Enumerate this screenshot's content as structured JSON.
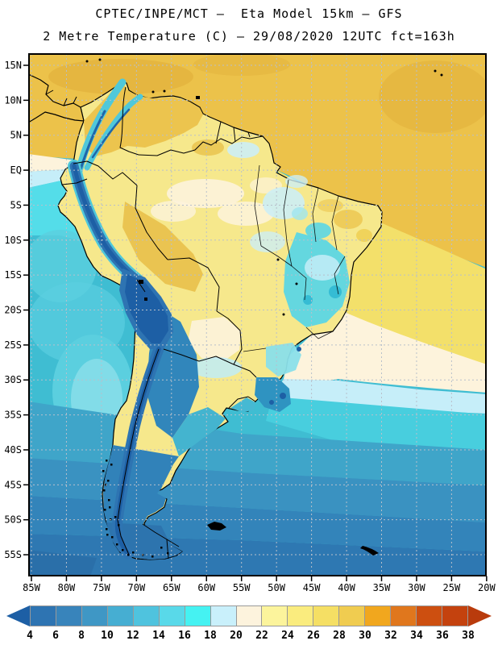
{
  "header": {
    "title": "CPTEC/INPE/MCT –  Eta Model 15km – GFS",
    "subtitle": "2 Metre Temperature (C) – 29/08/2020 12UTC fct=163h"
  },
  "map": {
    "y_axis_labels": [
      "15N",
      "10N",
      "5N",
      "EQ",
      "5S",
      "10S",
      "15S",
      "20S",
      "25S",
      "30S",
      "35S",
      "40S",
      "45S",
      "50S",
      "55S"
    ],
    "x_axis_labels": [
      "85W",
      "80W",
      "75W",
      "70W",
      "65W",
      "60W",
      "55W",
      "50W",
      "45W",
      "40W",
      "35W",
      "30W",
      "25W",
      "20W"
    ],
    "grid_color": "#b8c0cb",
    "frame_color": "#000000",
    "coast_color": "#000000",
    "border_color": "#000000"
  },
  "colorbar": {
    "tick_labels": [
      "4",
      "6",
      "8",
      "10",
      "12",
      "14",
      "16",
      "18",
      "20",
      "22",
      "24",
      "26",
      "28",
      "30",
      "32",
      "34",
      "36",
      "38"
    ],
    "cell_colors": [
      "#2e74b2",
      "#3884bb",
      "#3f97c5",
      "#46aed2",
      "#4fc3de",
      "#59d9e9",
      "#45f2f2",
      "#c9f0fb",
      "#fdf3dd",
      "#fcf49c",
      "#faec7e",
      "#f5df64",
      "#f0cc50",
      "#f1a71e",
      "#e0771d",
      "#cd4f10",
      "#c4420e"
    ],
    "left_arrow_color": "#1d5fa5",
    "right_arrow_color": "#b93b0c",
    "divider_color": "#999999"
  },
  "palette": {
    "ocean_teal": "#3fbdd2",
    "gold": "#ecc24a",
    "gold_deep": "#e2b13c",
    "yellow": "#f3e06a",
    "cream": "#fdf3dc",
    "pale_cyan": "#c6eef9",
    "bright_cyan": "#54dde9",
    "cyan_mid": "#48cede",
    "teal_light": "#5bcfdf",
    "teal_pale": "#82dce8",
    "ocean_b1": "#3fa5c9",
    "ocean_b2": "#3a92c1",
    "ocean_b3": "#3384ba",
    "ocean_b4": "#2e78b2",
    "ocean_b5": "#2a6fa9",
    "land_base": "#f6e88c",
    "land_gold": "#ecc44e",
    "land_gold_deep": "#e9c04a",
    "spot_gold": "#f0d055",
    "land_cyan": "#cdeef5",
    "land_cyan_mid": "#5cd6e4",
    "land_cyan_pale": "#bfecf6",
    "land_cyan_deep": "#35bcd4",
    "tongue_cyan": "#9fe5ef",
    "land_teal": "#44b4cf",
    "land_blue": "#3186bb",
    "land_blue2": "#3182b9",
    "land_blue3": "#2f93c1",
    "land_blue4": "#2d74ae",
    "sp_cyan": "#8adfe9",
    "uruguay_teal": "#46b9d3",
    "andes_fringe": "#4fc8da",
    "andes_mid": "#2e74b2",
    "andes_core": "#1d5fa5",
    "andes_core2": "#1f66aa"
  },
  "chart_data": {
    "type": "heatmap",
    "title": "CPTEC/INPE/MCT –  Eta Model 15km – GFS",
    "subtitle": "2 Metre Temperature (C) – 29/08/2020 12UTC fct=163h",
    "variable": "2 Metre Temperature",
    "units": "C",
    "lat_ticks": [
      "15N",
      "10N",
      "5N",
      "EQ",
      "5S",
      "10S",
      "15S",
      "20S",
      "25S",
      "30S",
      "35S",
      "40S",
      "45S",
      "50S",
      "55S"
    ],
    "lon_ticks": [
      "85W",
      "80W",
      "75W",
      "70W",
      "65W",
      "60W",
      "55W",
      "50W",
      "45W",
      "40W",
      "35W",
      "30W",
      "25W",
      "20W"
    ],
    "colorbar_values_c": [
      4,
      6,
      8,
      10,
      12,
      14,
      16,
      18,
      20,
      22,
      24,
      26,
      28,
      30,
      32,
      34,
      36,
      38
    ],
    "colorbar_colors": [
      "#2e74b2",
      "#3884bb",
      "#3f97c5",
      "#46aed2",
      "#4fc3de",
      "#59d9e9",
      "#45f2f2",
      "#c9f0fb",
      "#fdf3dd",
      "#fcf49c",
      "#faec7e",
      "#f5df64",
      "#f0cc50",
      "#f1a71e",
      "#e0771d",
      "#cd4f10",
      "#c4420e"
    ],
    "legend_position": "bottom"
  }
}
